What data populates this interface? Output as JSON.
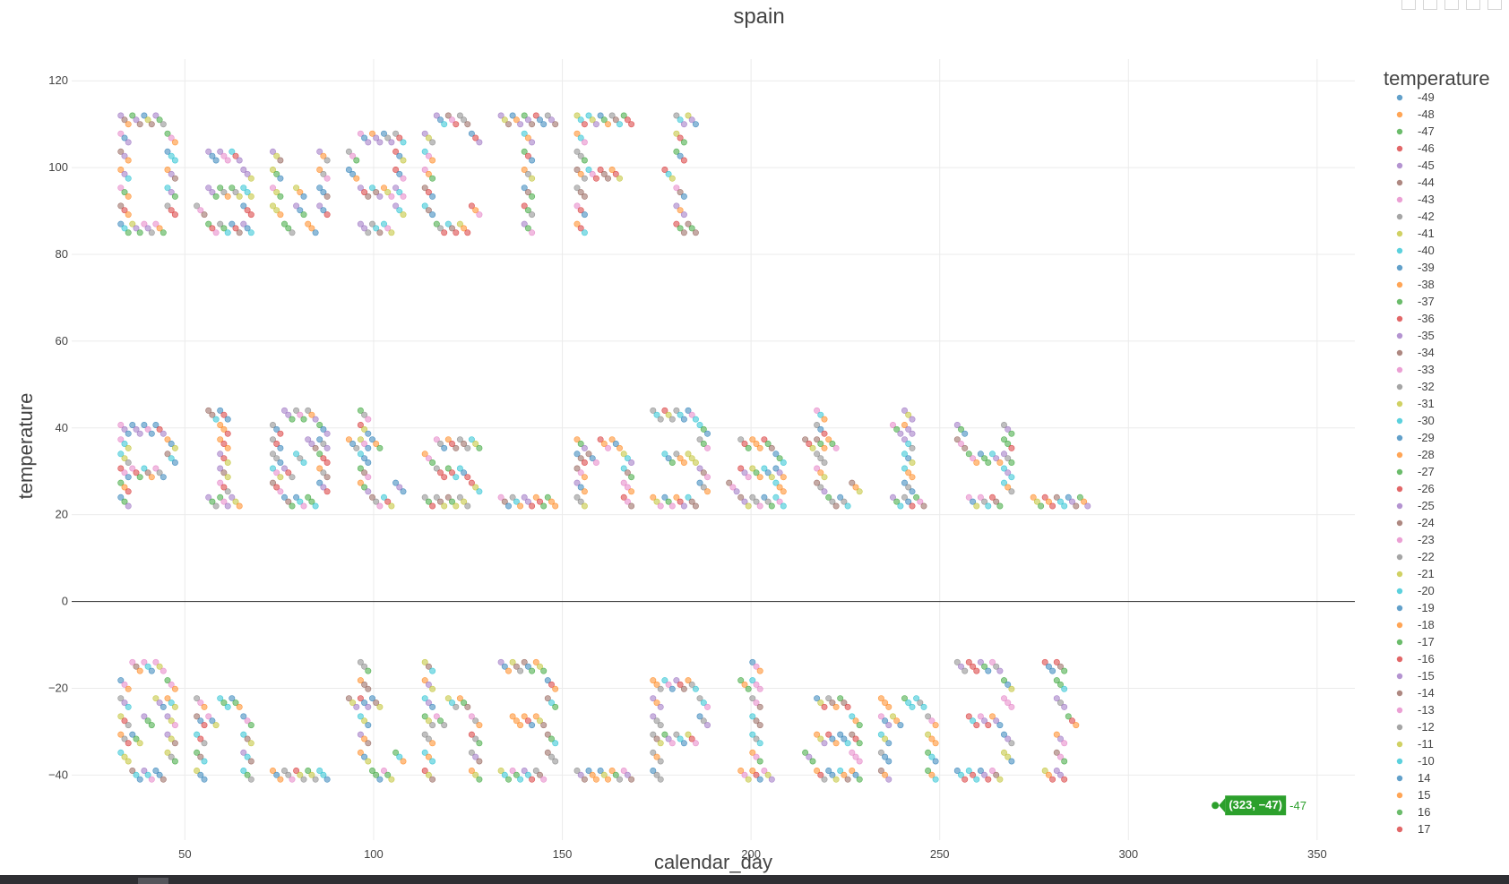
{
  "chart_data": {
    "type": "scatter",
    "title": "spain",
    "xlabel": "calendar_day",
    "ylabel": "temperature",
    "xlim": [
      20,
      360
    ],
    "ylim": [
      -55,
      125
    ],
    "x_ticks": [
      50,
      100,
      150,
      200,
      250,
      300,
      350
    ],
    "y_ticks": [
      -40,
      -20,
      0,
      20,
      40,
      60,
      80,
      100,
      120
    ],
    "x_tick_labels": [
      "50",
      "100",
      "150",
      "200",
      "250",
      "300",
      "350"
    ],
    "y_tick_labels": [
      "−40",
      "−20",
      "0",
      "20",
      "40",
      "60",
      "80",
      "100",
      "120"
    ],
    "grid": true,
    "zero_line": true,
    "legend_title": "temperature",
    "legend_position": "right",
    "legend_entries": [
      "-49",
      "-48",
      "-47",
      "-46",
      "-45",
      "-44",
      "-43",
      "-42",
      "-41",
      "-40",
      "-39",
      "-38",
      "-37",
      "-36",
      "-35",
      "-34",
      "-33",
      "-32",
      "-31",
      "-30",
      "-29",
      "-28",
      "-27",
      "-26",
      "-25",
      "-24",
      "-23",
      "-22",
      "-21",
      "-20",
      "-19",
      "-18",
      "-17",
      "-16",
      "-15",
      "-14",
      "-13",
      "-12",
      "-11",
      "-10",
      "14",
      "15",
      "16",
      "17"
    ],
    "palette": [
      "#1f77b4",
      "#ff7f0e",
      "#2ca02c",
      "#d62728",
      "#9467bd",
      "#8c564b",
      "#e377c2",
      "#7f7f7f",
      "#bcbd22",
      "#17becf"
    ],
    "marker_opacity": 0.5,
    "marker_shape": "circle",
    "text_rows": [
      {
        "text": "DawgCTF{",
        "baseline": 87,
        "top": 112,
        "start_x": 33
      },
      {
        "text": "pl0ts_n3at1y_",
        "baseline": 24,
        "top": 44,
        "start_x": 33
      },
      {
        "text": "0n_th3_p1an3}",
        "baseline": -39,
        "top": -14,
        "start_x": 33
      }
    ],
    "hover": {
      "x": 323,
      "y": -47,
      "label": "(323, −47)",
      "series": "-47",
      "color": "#2ca02c"
    }
  }
}
